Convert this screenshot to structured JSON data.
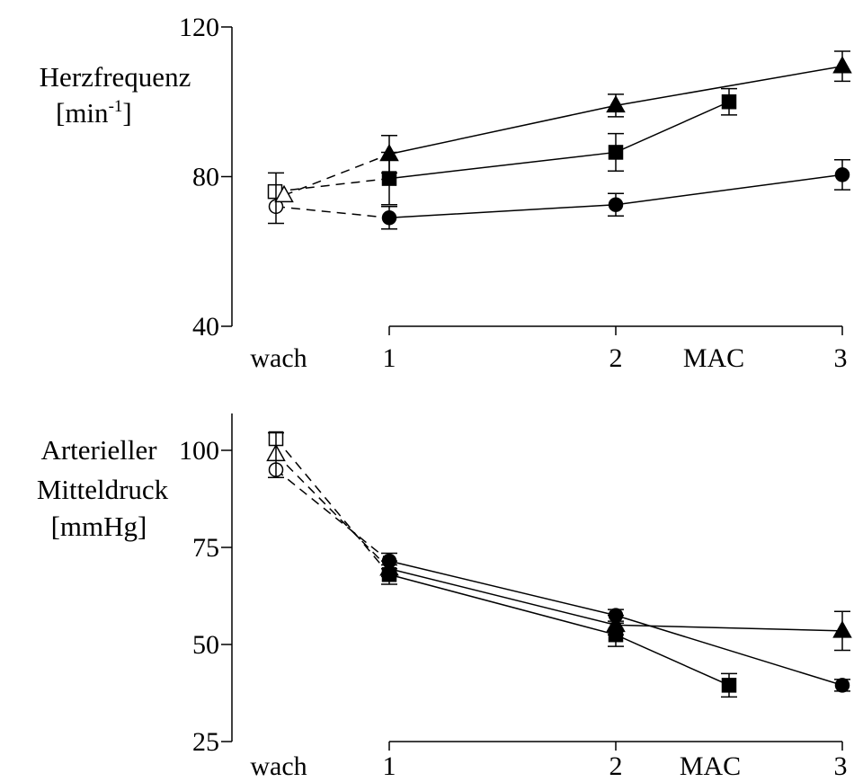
{
  "chart_data": [
    {
      "type": "line",
      "ylabel_lines": [
        "Herzfrequenz",
        "[min",
        "-1",
        "]"
      ],
      "x_tick_labels": [
        "wach",
        "1",
        "2",
        "3"
      ],
      "x_axis_label": "MAC",
      "y_ticks": [
        40,
        80,
        120
      ],
      "ylim": [
        40,
        120
      ],
      "awake_values": {
        "circle": 72,
        "triangle": 75,
        "square": 76
      },
      "series": [
        {
          "marker": "circle",
          "points": [
            {
              "x": 1,
              "y": 69,
              "err": 3
            },
            {
              "x": 2,
              "y": 72.5,
              "err": 3
            },
            {
              "x": 3,
              "y": 80.5,
              "err": 4
            }
          ]
        },
        {
          "marker": "square",
          "points": [
            {
              "x": 1,
              "y": 79.5,
              "err": 7
            },
            {
              "x": 2,
              "y": 86.5,
              "err": 5
            },
            {
              "x": 2.5,
              "y": 100,
              "err": 3.5
            }
          ]
        },
        {
          "marker": "triangle",
          "points": [
            {
              "x": 1,
              "y": 86,
              "err": 5
            },
            {
              "x": 2,
              "y": 99,
              "err": 3
            },
            {
              "x": 3,
              "y": 109.5,
              "err": 4
            }
          ]
        }
      ]
    },
    {
      "type": "line",
      "ylabel_lines": [
        "Arterieller",
        "Mitteldruck",
        "[mmHg]"
      ],
      "x_tick_labels": [
        "wach",
        "1",
        "2",
        "3"
      ],
      "x_axis_label": "MAC",
      "y_ticks": [
        25,
        50,
        75,
        100
      ],
      "ylim": [
        25,
        110
      ],
      "awake_values": {
        "circle": 95,
        "triangle": 99,
        "square": 103
      },
      "series": [
        {
          "marker": "circle",
          "points": [
            {
              "x": 1,
              "y": 71.5,
              "err": 2
            },
            {
              "x": 2,
              "y": 57.5,
              "err": 1.5
            },
            {
              "x": 3,
              "y": 39.5,
              "err": 1.5
            }
          ]
        },
        {
          "marker": "square",
          "points": [
            {
              "x": 1,
              "y": 68,
              "err": 2.5
            },
            {
              "x": 2,
              "y": 52.5,
              "err": 3
            },
            {
              "x": 2.5,
              "y": 39.5,
              "err": 3
            }
          ]
        },
        {
          "marker": "triangle",
          "points": [
            {
              "x": 1,
              "y": 69.5,
              "err": 2
            },
            {
              "x": 2,
              "y": 55,
              "err": 2.5
            },
            {
              "x": 3,
              "y": 53.5,
              "err": 5
            }
          ]
        }
      ]
    }
  ]
}
